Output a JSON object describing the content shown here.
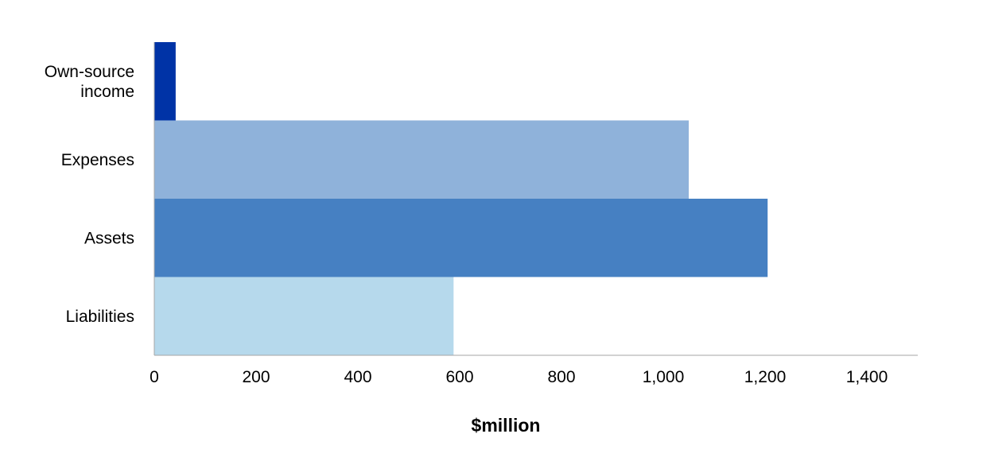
{
  "chart_data": {
    "type": "bar",
    "orientation": "horizontal",
    "title": "",
    "xlabel": "$million",
    "ylabel": "",
    "xlim": [
      0,
      1500
    ],
    "xticks": [
      0,
      200,
      400,
      600,
      800,
      1000,
      1200,
      1400
    ],
    "xtick_labels": [
      "0",
      "200",
      "400",
      "600",
      "800",
      "1,000",
      "1,200",
      "1,400"
    ],
    "grid": false,
    "legend": "none",
    "categories": [
      [
        "Own-source",
        "income"
      ],
      [
        "Expenses"
      ],
      [
        "Assets"
      ],
      [
        "Liabilities"
      ]
    ],
    "values": [
      42,
      1050,
      1205,
      588
    ],
    "colors": [
      "#0033a6",
      "#8fb2da",
      "#4680c2",
      "#b6d9ec"
    ]
  }
}
